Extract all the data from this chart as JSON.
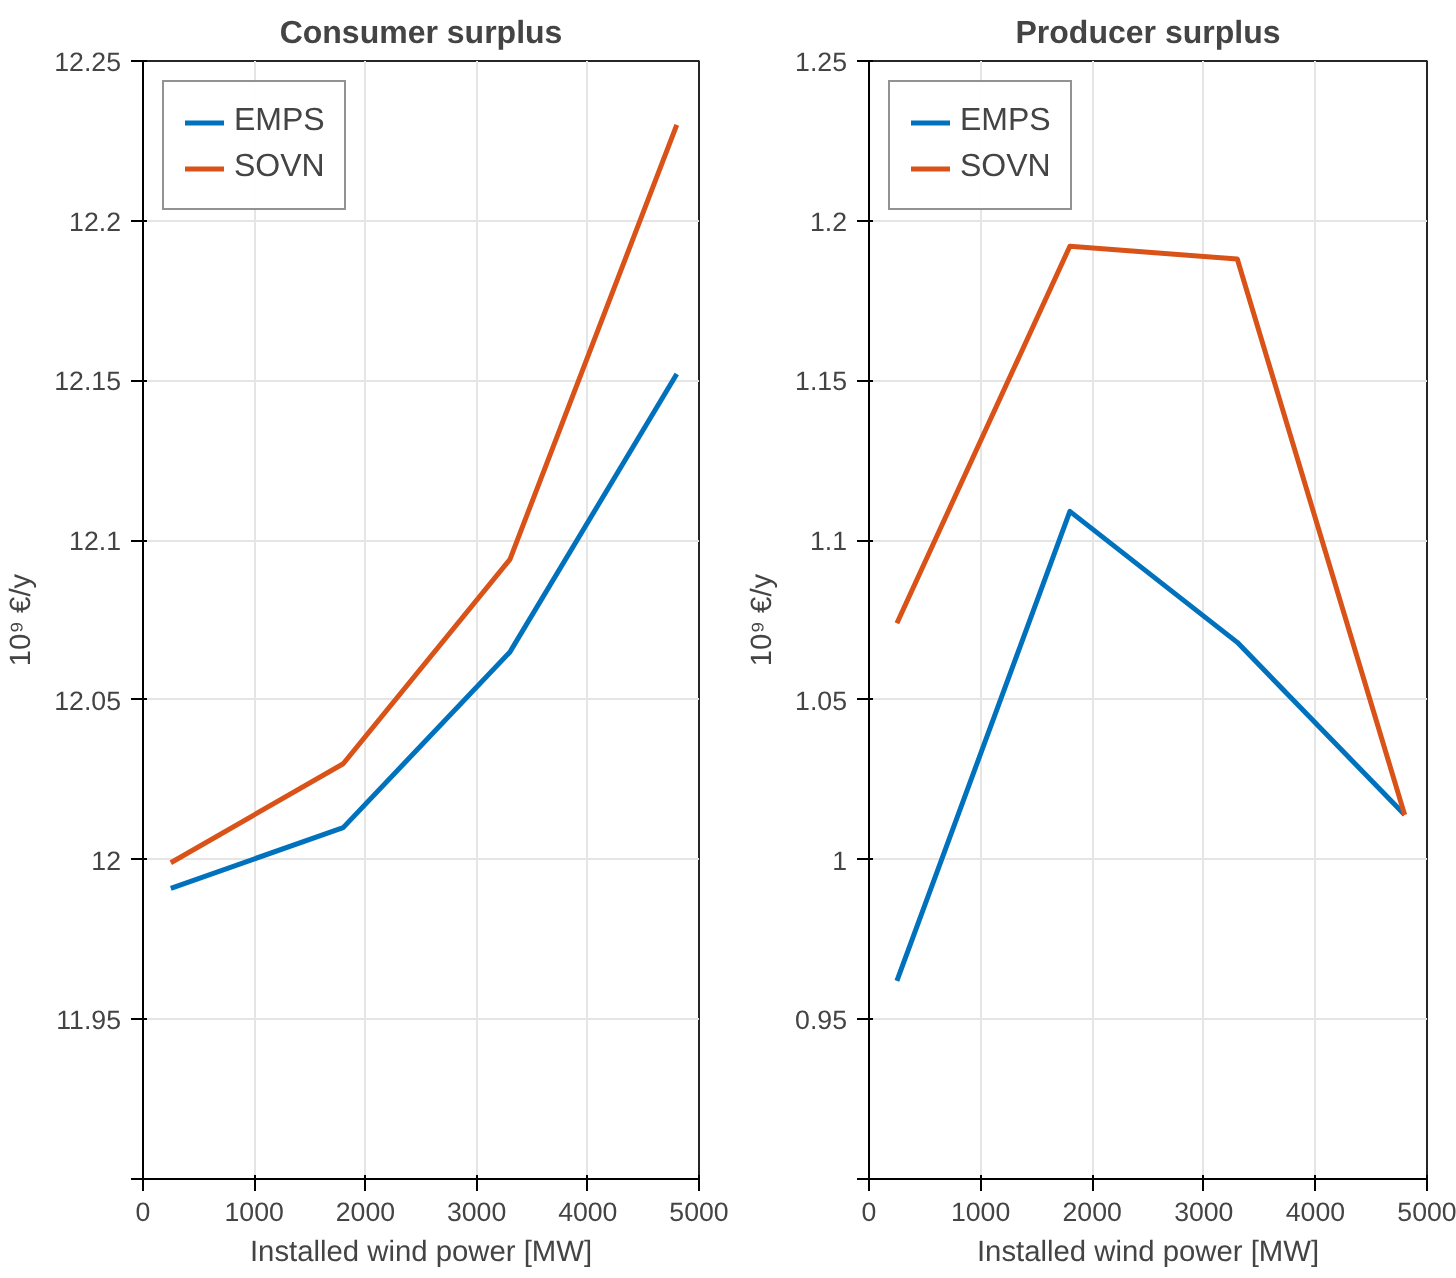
{
  "chart_data": [
    {
      "type": "line",
      "title": "Consumer surplus",
      "xlabel": "Installed wind power [MW]",
      "ylabel": "10⁹ €/y",
      "x": [
        250,
        1800,
        3300,
        4800
      ],
      "series": [
        {
          "name": "EMPS",
          "color": "#0072bd",
          "values": [
            11.991,
            12.01,
            12.065,
            12.152
          ]
        },
        {
          "name": "SOVN",
          "color": "#d95319",
          "values": [
            11.999,
            12.03,
            12.094,
            12.23
          ]
        }
      ],
      "xlim": [
        0,
        5000
      ],
      "xticks": [
        0,
        1000,
        2000,
        3000,
        4000,
        5000
      ],
      "ylim": [
        11.9,
        12.25
      ],
      "yticks": [
        {
          "value": 11.9,
          "label": null
        },
        11.95,
        12,
        12.05,
        12.1,
        12.15,
        12.2,
        12.25
      ],
      "grid": true,
      "legend": "top left"
    },
    {
      "type": "line",
      "title": "Producer surplus",
      "xlabel": "Installed wind power [MW]",
      "ylabel": "10⁹ €/y",
      "x": [
        250,
        1800,
        3300,
        4800
      ],
      "series": [
        {
          "name": "EMPS",
          "color": "#0072bd",
          "values": [
            0.962,
            1.109,
            1.068,
            1.014
          ]
        },
        {
          "name": "SOVN",
          "color": "#d95319",
          "values": [
            1.074,
            1.192,
            1.188,
            1.014
          ]
        }
      ],
      "xlim": [
        0,
        5000
      ],
      "xticks": [
        0,
        1000,
        2000,
        3000,
        4000,
        5000
      ],
      "ylim": [
        0.9,
        1.25
      ],
      "yticks": [
        {
          "value": 0.9,
          "label": null
        },
        0.95,
        1,
        1.05,
        1.1,
        1.15,
        1.2,
        1.25
      ],
      "grid": true,
      "legend": "top left"
    }
  ]
}
